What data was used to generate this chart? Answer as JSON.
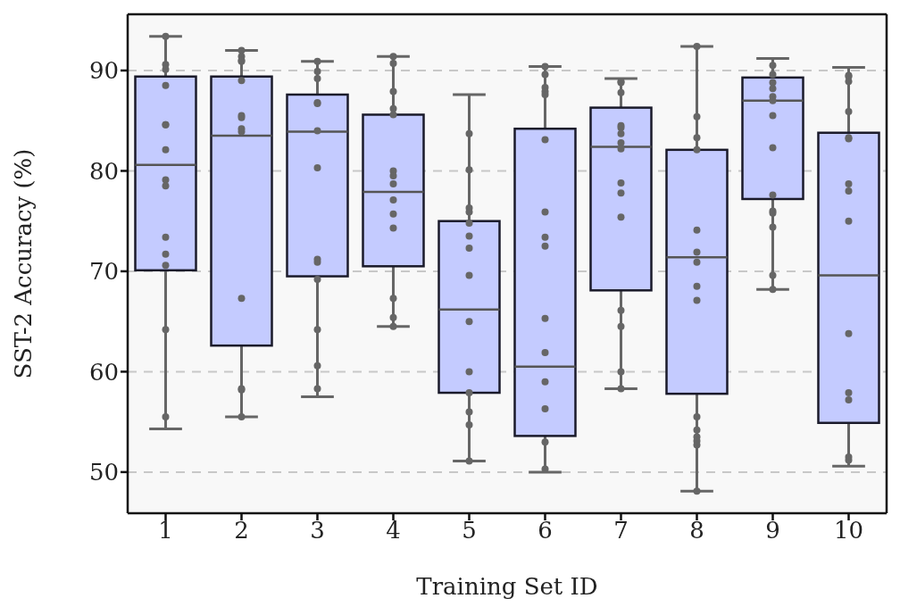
{
  "chart_data": {
    "type": "box",
    "xlabel": "Training Set ID",
    "ylabel": "SST-2 Accuracy (%)",
    "categories": [
      "1",
      "2",
      "3",
      "4",
      "5",
      "6",
      "7",
      "8",
      "9",
      "10"
    ],
    "color": "#c4cbff",
    "boxes": [
      {
        "low": 54.3,
        "q1": 70.1,
        "median": 80.6,
        "q3": 89.4,
        "high": 93.4
      },
      {
        "low": 55.5,
        "q1": 62.6,
        "median": 83.5,
        "q3": 89.4,
        "high": 92.0
      },
      {
        "low": 57.5,
        "q1": 69.5,
        "median": 83.9,
        "q3": 87.6,
        "high": 90.9
      },
      {
        "low": 64.5,
        "q1": 70.5,
        "median": 77.9,
        "q3": 85.6,
        "high": 91.4
      },
      {
        "low": 51.1,
        "q1": 57.9,
        "median": 66.2,
        "q3": 75.0,
        "high": 87.6
      },
      {
        "low": 50.0,
        "q1": 53.6,
        "median": 60.5,
        "q3": 84.2,
        "high": 90.4
      },
      {
        "low": 58.3,
        "q1": 68.1,
        "median": 82.4,
        "q3": 86.3,
        "high": 89.2
      },
      {
        "low": 48.1,
        "q1": 57.8,
        "median": 71.4,
        "q3": 82.1,
        "high": 92.4
      },
      {
        "low": 68.2,
        "q1": 77.2,
        "median": 87.0,
        "q3": 89.3,
        "high": 91.2
      },
      {
        "low": 50.6,
        "q1": 54.9,
        "median": 69.6,
        "q3": 83.8,
        "high": 90.3
      }
    ],
    "series": [
      {
        "type": "scatter",
        "color": "#666666",
        "x": [
          "1",
          "1",
          "1",
          "1",
          "1",
          "1",
          "1",
          "1",
          "1",
          "1",
          "1",
          "1",
          "1",
          "1",
          "2",
          "2",
          "2",
          "2",
          "2",
          "2",
          "2",
          "2",
          "2",
          "2",
          "2",
          "2",
          "2",
          "3",
          "3",
          "3",
          "3",
          "3",
          "3",
          "3",
          "3",
          "3",
          "3",
          "3",
          "3",
          "3",
          "4",
          "4",
          "4",
          "4",
          "4",
          "4",
          "4",
          "4",
          "4",
          "4",
          "4",
          "4",
          "4",
          "4",
          "5",
          "5",
          "5",
          "5",
          "5",
          "5",
          "5",
          "5",
          "5",
          "5",
          "5",
          "5",
          "5",
          "5",
          "6",
          "6",
          "6",
          "6",
          "6",
          "6",
          "6",
          "6",
          "6",
          "6",
          "6",
          "6",
          "6",
          "6",
          "6",
          "7",
          "7",
          "7",
          "7",
          "7",
          "7",
          "7",
          "7",
          "7",
          "7",
          "7",
          "7",
          "7",
          "7",
          "7",
          "8",
          "8",
          "8",
          "8",
          "8",
          "8",
          "8",
          "8",
          "8",
          "8",
          "8",
          "8",
          "8",
          "8",
          "8",
          "9",
          "9",
          "9",
          "9",
          "9",
          "9",
          "9",
          "9",
          "9",
          "9",
          "9",
          "9",
          "9",
          "9",
          "10",
          "10",
          "10",
          "10",
          "10",
          "10",
          "10",
          "10",
          "10",
          "10",
          "10",
          "10",
          "10",
          "10"
        ],
        "values": [
          93.4,
          90.6,
          90.1,
          88.5,
          84.6,
          84.6,
          82.1,
          79.1,
          78.5,
          73.4,
          71.7,
          70.6,
          64.2,
          55.5,
          92.0,
          91.4,
          91.0,
          90.9,
          89.0,
          85.5,
          85.3,
          84.2,
          83.9,
          67.3,
          58.2,
          58.3,
          55.5,
          90.9,
          89.9,
          89.2,
          86.8,
          86.7,
          84.0,
          80.3,
          71.2,
          70.9,
          69.2,
          64.2,
          60.6,
          58.3,
          91.4,
          90.7,
          87.9,
          86.2,
          85.6,
          80.0,
          79.5,
          78.7,
          77.1,
          75.7,
          74.3,
          67.3,
          65.4,
          64.5,
          83.7,
          80.1,
          76.3,
          75.9,
          74.8,
          73.5,
          72.3,
          69.6,
          65.0,
          60.0,
          57.9,
          56.0,
          54.7,
          51.1,
          90.4,
          89.6,
          88.3,
          87.9,
          87.6,
          83.1,
          75.9,
          73.4,
          72.5,
          65.3,
          61.9,
          59.0,
          56.3,
          53.0,
          50.3,
          88.9,
          88.8,
          87.8,
          84.5,
          84.3,
          83.7,
          82.8,
          82.2,
          78.8,
          77.8,
          75.4,
          66.1,
          64.5,
          60.0,
          58.3,
          92.4,
          85.4,
          83.3,
          82.1,
          74.1,
          71.9,
          70.9,
          68.5,
          67.1,
          55.5,
          54.2,
          53.5,
          53.1,
          52.7,
          48.1,
          90.5,
          89.6,
          88.8,
          88.2,
          87.4,
          87.0,
          85.5,
          82.3,
          77.6,
          76.0,
          75.8,
          74.4,
          69.6,
          68.2,
          89.5,
          89.4,
          88.9,
          85.9,
          83.3,
          83.2,
          78.7,
          78.0,
          75.0,
          63.8,
          57.9,
          57.2,
          51.5,
          51.2
        ],
        "marker": "circle"
      }
    ],
    "ylim": [
      45.9,
      95.6
    ],
    "yticks": [
      50,
      60,
      70,
      80,
      90
    ],
    "grid": "y"
  }
}
